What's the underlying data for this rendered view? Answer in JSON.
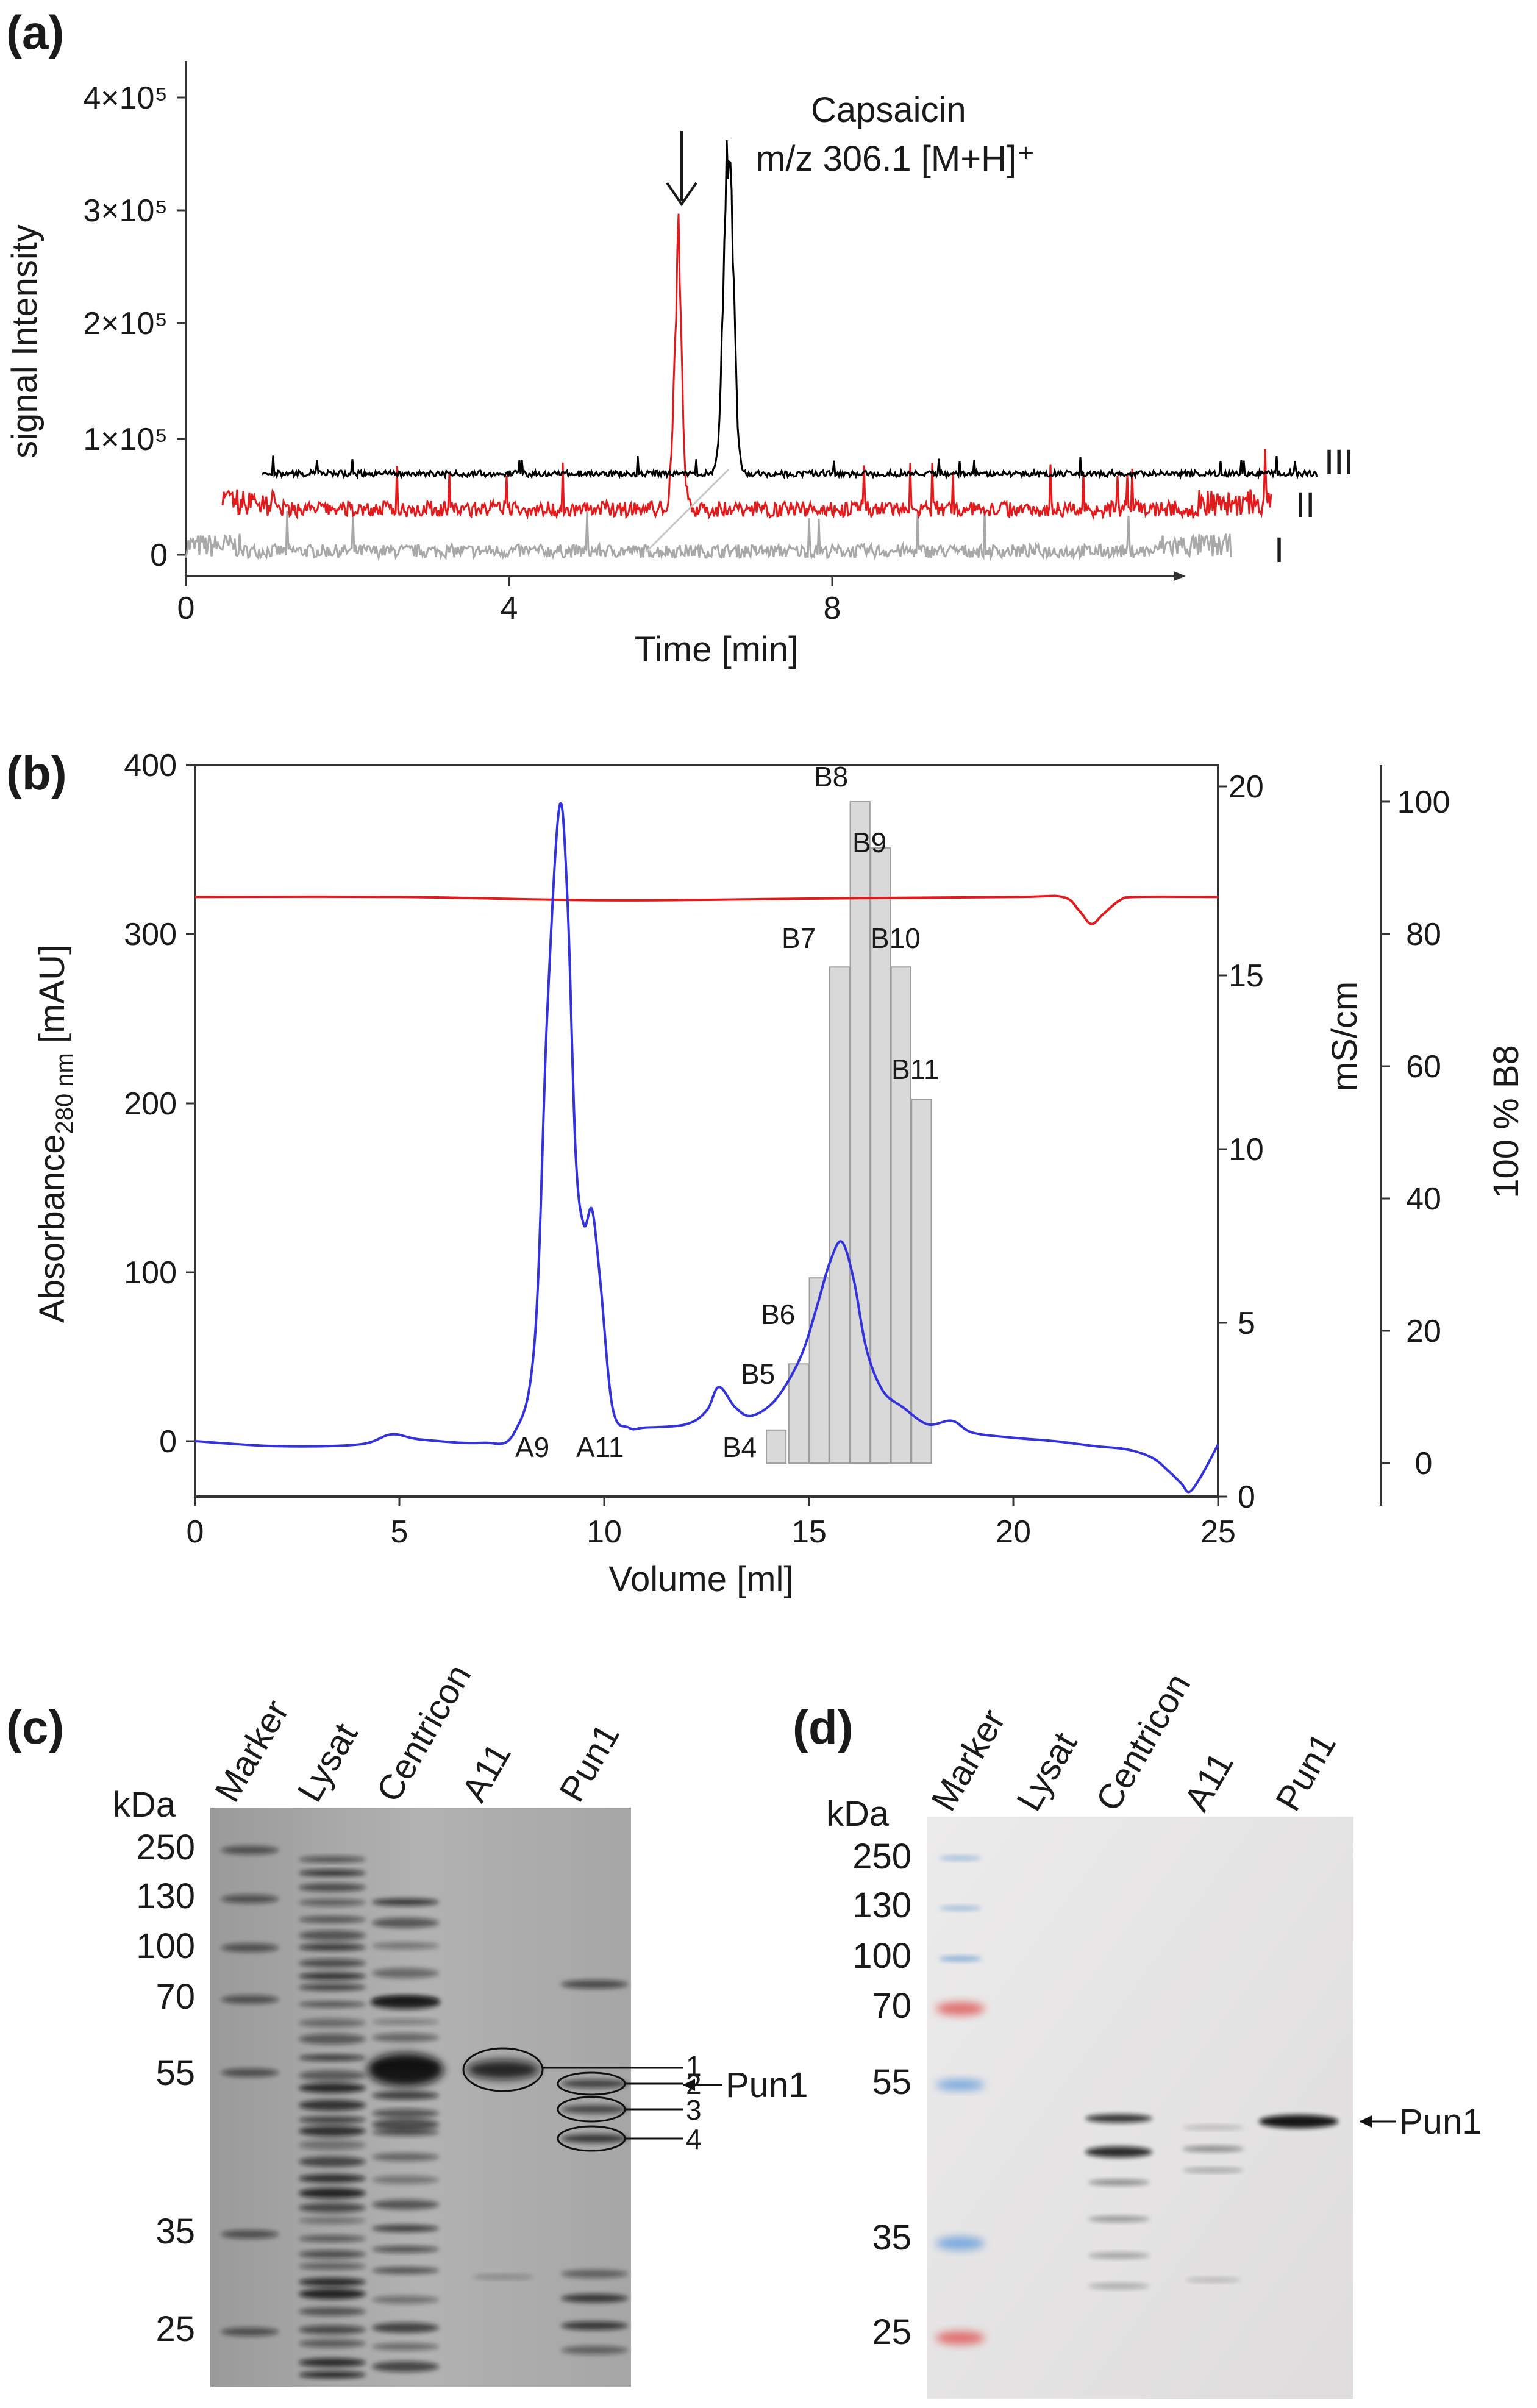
{
  "panel_a": {
    "label": "(a)",
    "ylabel": "signal Intensity",
    "xlabel": "Time [min]",
    "yticks": [
      "0",
      "1×10⁵",
      "2×10⁵",
      "3×10⁵",
      "4×10⁵"
    ],
    "xticks": [
      "0",
      "4",
      "8"
    ],
    "annotation_line1": "Capsaicin",
    "annotation_line2": "m/z 306.1 [M+H]⁺",
    "trace_labels": [
      "III",
      "II",
      "I"
    ],
    "colors": {
      "III": "#000000",
      "II": "#e31a1c",
      "I": "#a8a8a8"
    }
  },
  "panel_b": {
    "label": "(b)",
    "ylabel_left": "Absorbance",
    "ylabel_left_sub": "280 nm",
    "ylabel_left_unit": " [mAU]",
    "ylabel_right1": "mS/cm",
    "ylabel_right2": "100 % B8",
    "xlabel": "Volume [ml]",
    "xticks": [
      "0",
      "5",
      "10",
      "15",
      "20",
      "25"
    ],
    "yticks_left": [
      "0",
      "100",
      "200",
      "300",
      "400"
    ],
    "yticks_right1": [
      "0",
      "5",
      "10",
      "15",
      "20"
    ],
    "yticks_right2": [
      "0",
      "20",
      "40",
      "60",
      "80",
      "100"
    ],
    "fraction_labels": [
      "A9",
      "A11",
      "B4",
      "B5",
      "B6",
      "B7",
      "B8",
      "B9",
      "B10",
      "B11"
    ]
  },
  "chart_data": [
    {
      "type": "line",
      "panel": "b",
      "series": [
        {
          "name": "",
          "color": "#3333dd",
          "x": [
            0,
            2,
            4,
            4.8,
            5.5,
            7,
            7.8,
            8.3,
            8.6,
            8.9,
            9.1,
            9.3,
            9.5,
            9.7,
            9.9,
            10.2,
            10.6,
            11,
            12,
            12.5,
            12.8,
            13.2,
            13.6,
            14.2,
            14.8,
            15.2,
            15.5,
            15.8,
            16.1,
            16.4,
            16.8,
            17.3,
            17.9,
            18.5,
            19,
            20,
            21,
            22,
            22.8,
            23.4,
            23.8,
            24.1,
            24.3,
            24.6,
            25
          ],
          "y": [
            0,
            -3,
            -2,
            4,
            1,
            -1,
            5,
            60,
            250,
            375,
            320,
            170,
            128,
            137,
            95,
            20,
            8,
            8,
            10,
            18,
            32,
            20,
            15,
            25,
            50,
            80,
            105,
            118,
            95,
            55,
            30,
            20,
            10,
            12,
            5,
            2,
            0,
            -3,
            -5,
            -10,
            -18,
            -25,
            -30,
            -20,
            -2
          ]
        },
        {
          "name": "",
          "color": "#e31a1c",
          "x": [
            0,
            5,
            10,
            15,
            20,
            21.2,
            21.6,
            21.9,
            22.2,
            22.6,
            23,
            25
          ],
          "y": [
            322,
            322,
            320,
            321,
            322,
            322,
            314,
            306,
            312,
            320,
            322,
            322
          ]
        }
      ],
      "bars": {
        "labels": [
          "B4",
          "B5",
          "B6",
          "B7",
          "B8",
          "B9",
          "B10",
          "B11"
        ],
        "x": [
          14.2,
          14.75,
          15.25,
          15.75,
          16.25,
          16.75,
          17.25,
          17.75
        ],
        "percent_B8": [
          5,
          15,
          28,
          75,
          100,
          93,
          75,
          55
        ]
      },
      "xlim": [
        0,
        25
      ],
      "ylim_left": [
        -30,
        400
      ]
    }
  ],
  "panel_c": {
    "label": "(c)",
    "kda": "kDa",
    "lanes": [
      "Marker",
      "Lysat",
      "Centricon",
      "A11",
      "Pun1"
    ],
    "markers": [
      "250",
      "130",
      "100",
      "70",
      "55",
      "35",
      "25"
    ],
    "band_numbers": [
      "1",
      "2",
      "3",
      "4"
    ],
    "pun1_arrow": "Pun1"
  },
  "panel_d": {
    "label": "(d)",
    "kda": "kDa",
    "lanes": [
      "Marker",
      "Lysat",
      "Centricon",
      "A11",
      "Pun1"
    ],
    "markers": [
      "250",
      "130",
      "100",
      "70",
      "55",
      "35",
      "25"
    ],
    "pun1_arrow": "Pun1"
  }
}
